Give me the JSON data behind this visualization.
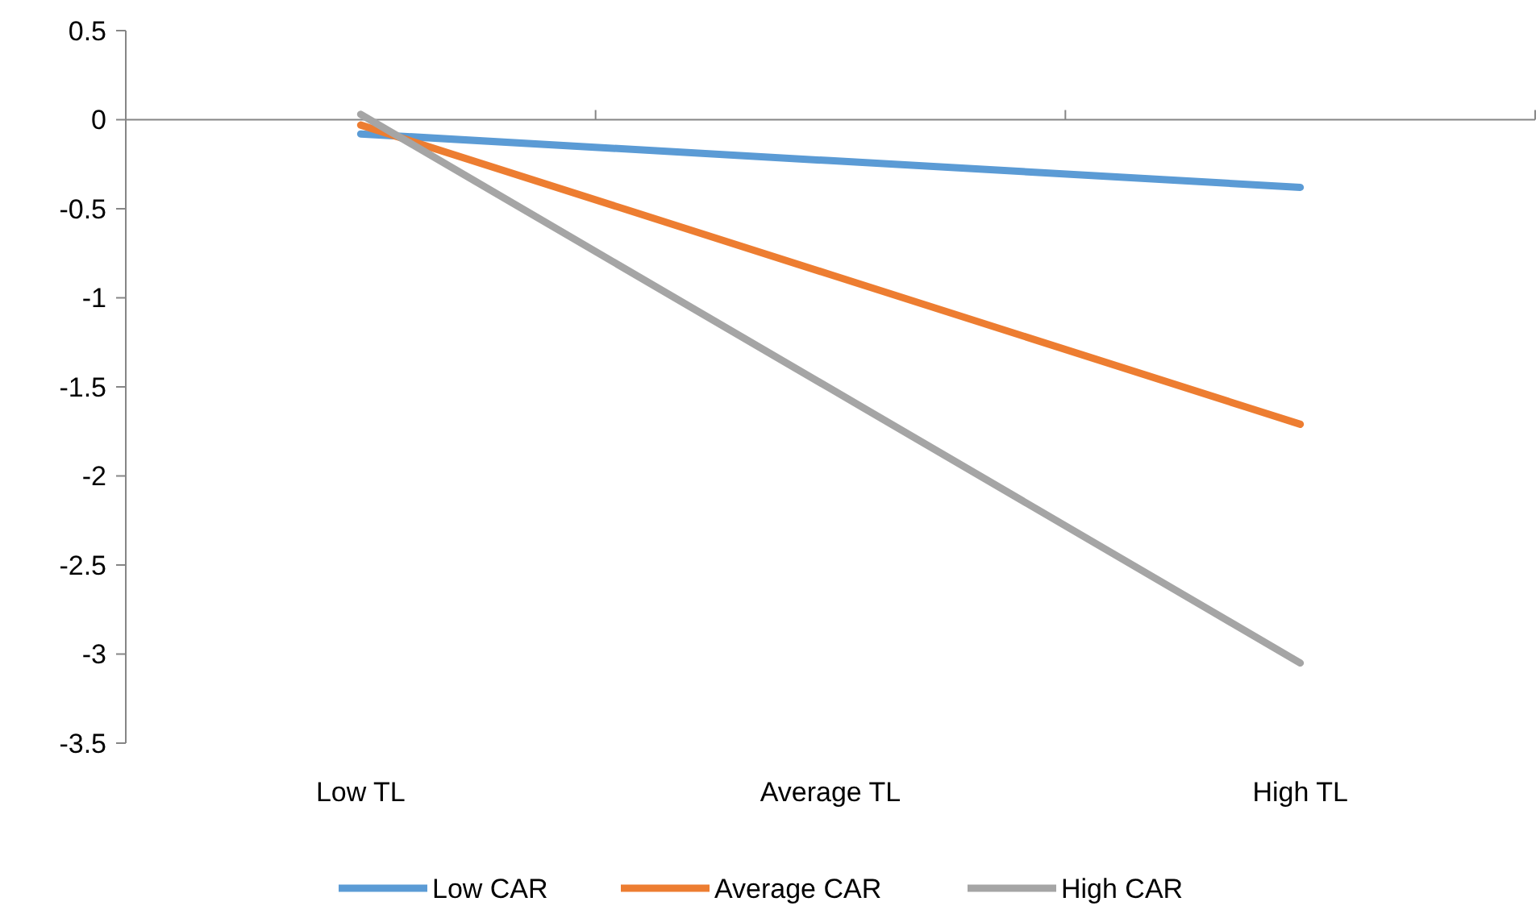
{
  "chart_data": {
    "type": "line",
    "categories": [
      "Low TL",
      "Average TL",
      "High TL"
    ],
    "series": [
      {
        "name": "Low CAR",
        "color": "#5b9bd5",
        "values": [
          -0.08,
          -0.23,
          -0.38
        ]
      },
      {
        "name": "Average CAR",
        "color": "#ed7d31",
        "values": [
          -0.03,
          -0.87,
          -1.71
        ]
      },
      {
        "name": "High CAR",
        "color": "#a5a5a5",
        "values": [
          0.03,
          -1.51,
          -3.05
        ]
      }
    ],
    "ylim": [
      -3.5,
      0.5
    ],
    "yticks": [
      {
        "value": -3.5,
        "label": "-3.5"
      },
      {
        "value": -3,
        "label": "-3"
      },
      {
        "value": -2.5,
        "label": "-2.5"
      },
      {
        "value": -2,
        "label": "-2"
      },
      {
        "value": -1.5,
        "label": "-1.5"
      },
      {
        "value": -1,
        "label": "-1"
      },
      {
        "value": -0.5,
        "label": "-0.5"
      },
      {
        "value": 0,
        "label": "0"
      },
      {
        "value": 0.5,
        "label": "0.5"
      }
    ],
    "legend": "bottom",
    "marker": "none",
    "line_style": "solid"
  }
}
